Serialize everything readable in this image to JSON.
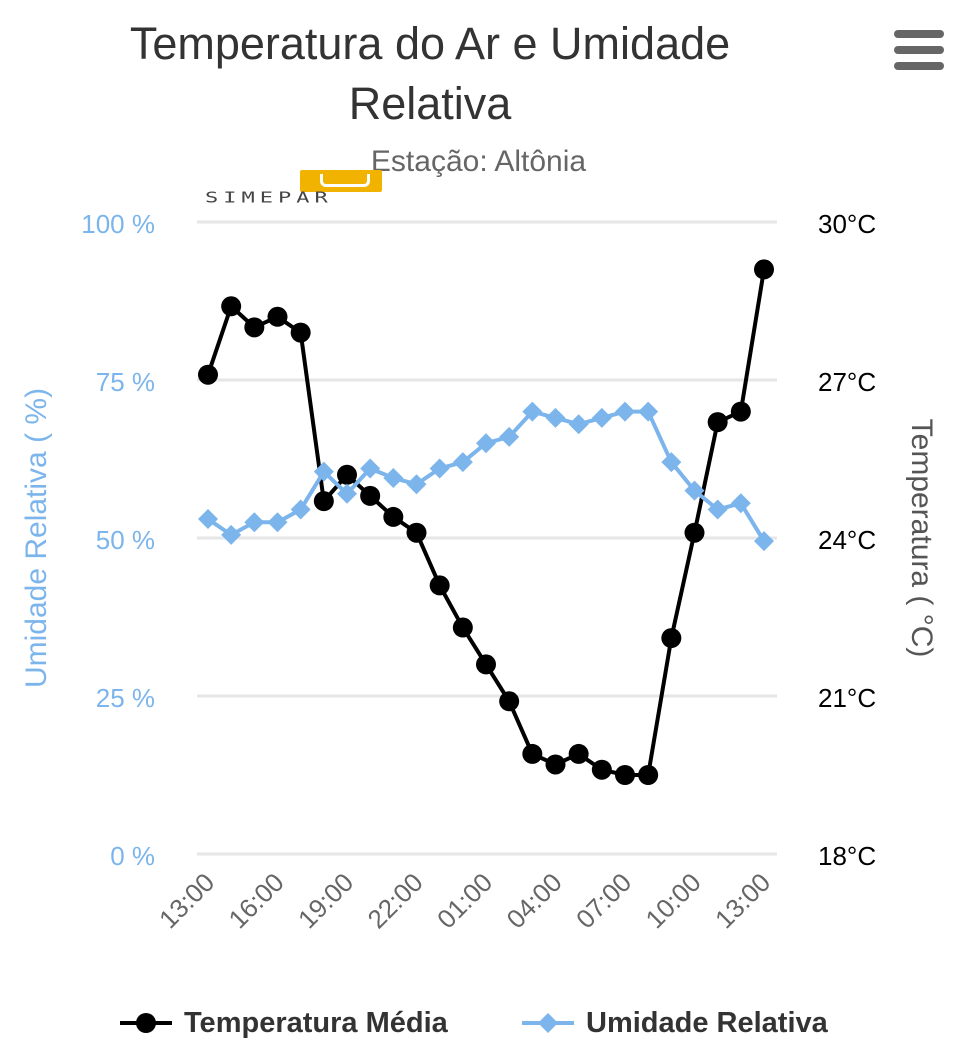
{
  "chart_data": {
    "type": "line",
    "title": "Temperatura do Ar e Umidade Relativa",
    "subtitle": "Estação: Altônia",
    "x_labels": [
      "13:00",
      "16:00",
      "19:00",
      "22:00",
      "01:00",
      "04:00",
      "07:00",
      "10:00",
      "13:00"
    ],
    "series": [
      {
        "name": "Temperatura Média",
        "axis": "right",
        "unit": "°C",
        "color": "#000000",
        "marker": "circle",
        "values": [
          27.1,
          28.4,
          28.0,
          28.2,
          27.9,
          24.7,
          25.2,
          24.8,
          24.4,
          24.1,
          23.1,
          22.3,
          21.6,
          20.9,
          19.9,
          19.7,
          19.9,
          19.6,
          19.5,
          19.5,
          22.1,
          24.1,
          26.2,
          26.4,
          29.1
        ]
      },
      {
        "name": "Umidade Relativa",
        "axis": "left",
        "unit": "%",
        "color": "#7cb5ec",
        "marker": "diamond",
        "values": [
          53,
          50.5,
          52.5,
          52.5,
          54.5,
          60.5,
          57,
          61,
          59.5,
          58.5,
          61,
          62,
          65,
          66,
          70,
          69,
          68,
          69,
          70,
          70,
          62,
          57.5,
          54.5,
          55.5,
          49.5
        ]
      }
    ],
    "y_left": {
      "label": "Umidade Relativa ( %)",
      "ticks": [
        "0 %",
        "25 %",
        "50 %",
        "75 %",
        "100 %"
      ],
      "min": 0,
      "max": 100
    },
    "y_right": {
      "label": "Temperatura ( °C)",
      "ticks": [
        "18°C",
        "21°C",
        "24°C",
        "27°C",
        "30°C"
      ],
      "min": 18,
      "max": 30
    },
    "grid": true,
    "legend_position": "bottom"
  },
  "logo": {
    "text": "SIMEPAR"
  },
  "menu": {
    "icon": "hamburger-menu-icon"
  }
}
